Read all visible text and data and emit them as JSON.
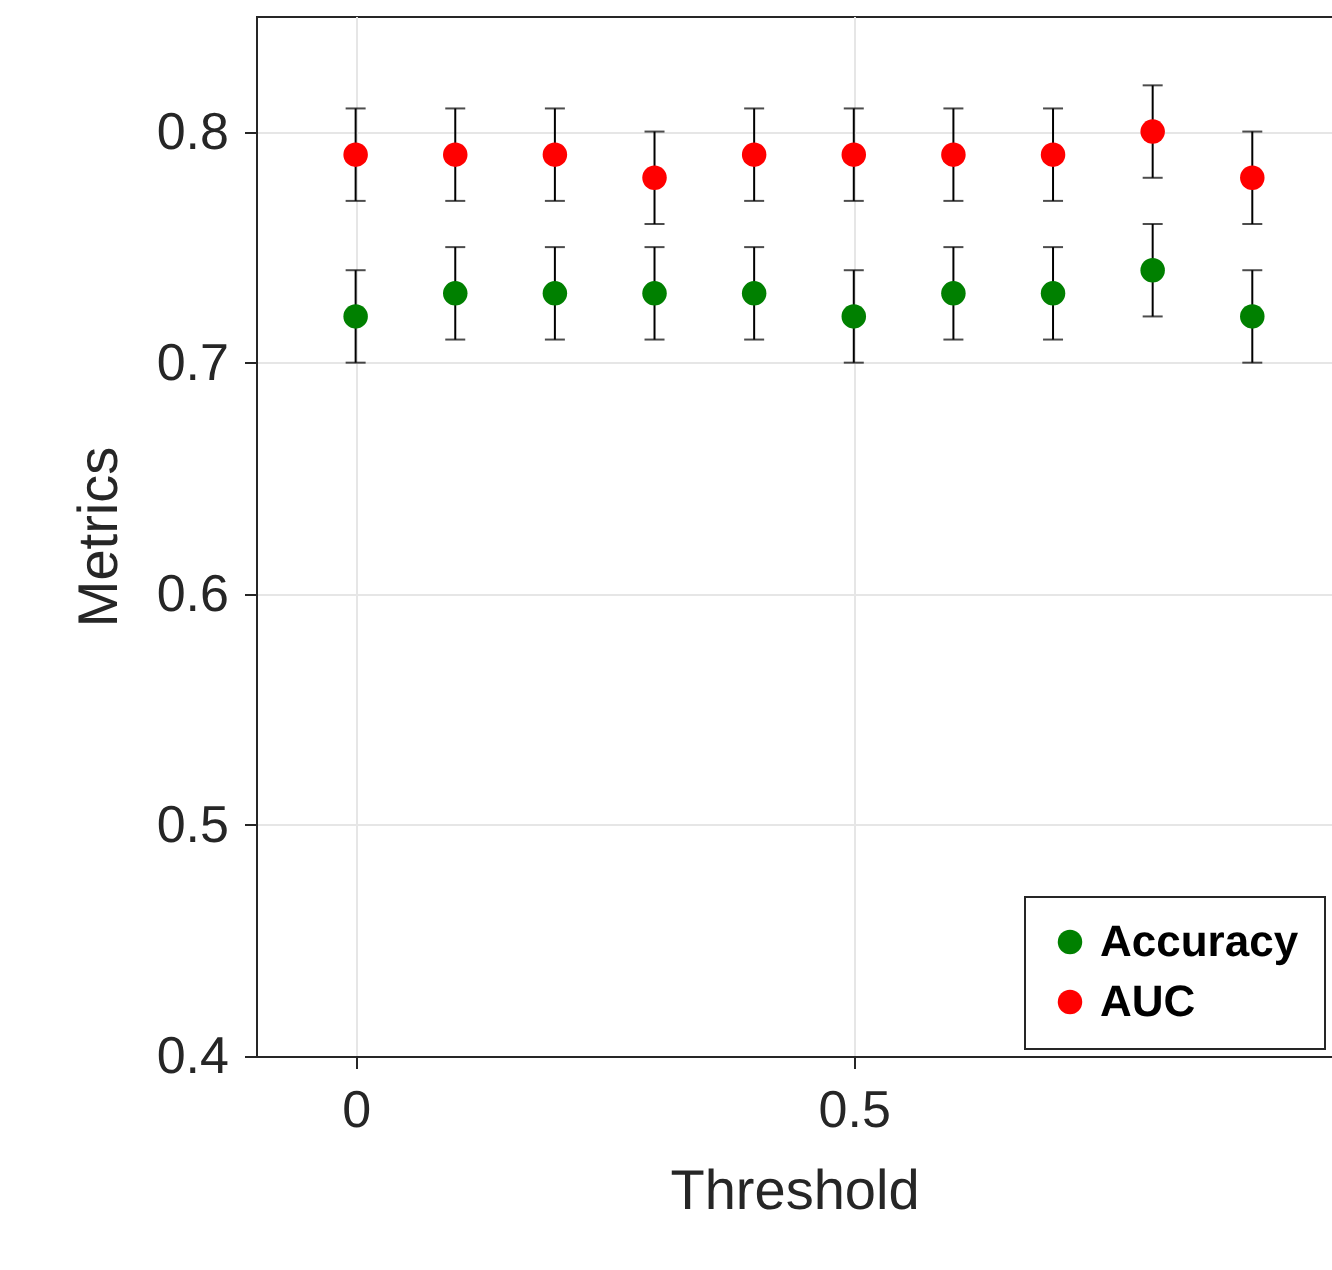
{
  "chart_data": {
    "type": "scatter",
    "xlabel": "Threshold",
    "ylabel": "Metrics",
    "x": [
      0,
      0.1,
      0.2,
      0.3,
      0.4,
      0.5,
      0.6,
      0.7,
      0.8,
      0.9
    ],
    "series": [
      {
        "name": "Accuracy",
        "color": "#008000",
        "values": [
          0.72,
          0.73,
          0.73,
          0.73,
          0.73,
          0.72,
          0.73,
          0.73,
          0.74,
          0.72
        ],
        "errors": [
          0.02,
          0.02,
          0.02,
          0.02,
          0.02,
          0.02,
          0.02,
          0.02,
          0.02,
          0.02
        ]
      },
      {
        "name": "AUC",
        "color": "#ff0000",
        "values": [
          0.79,
          0.79,
          0.79,
          0.78,
          0.79,
          0.79,
          0.79,
          0.79,
          0.8,
          0.78
        ],
        "errors": [
          0.02,
          0.02,
          0.02,
          0.02,
          0.02,
          0.02,
          0.02,
          0.02,
          0.02,
          0.02
        ]
      }
    ],
    "xlim": [
      -0.1,
      0.98
    ],
    "xticks": [
      0,
      0.5
    ],
    "ylim": [
      0.4,
      0.85
    ],
    "yticks": [
      0.4,
      0.5,
      0.6,
      0.7,
      0.8
    ],
    "grid": true,
    "legend": "bottom right",
    "marker": "circle"
  }
}
